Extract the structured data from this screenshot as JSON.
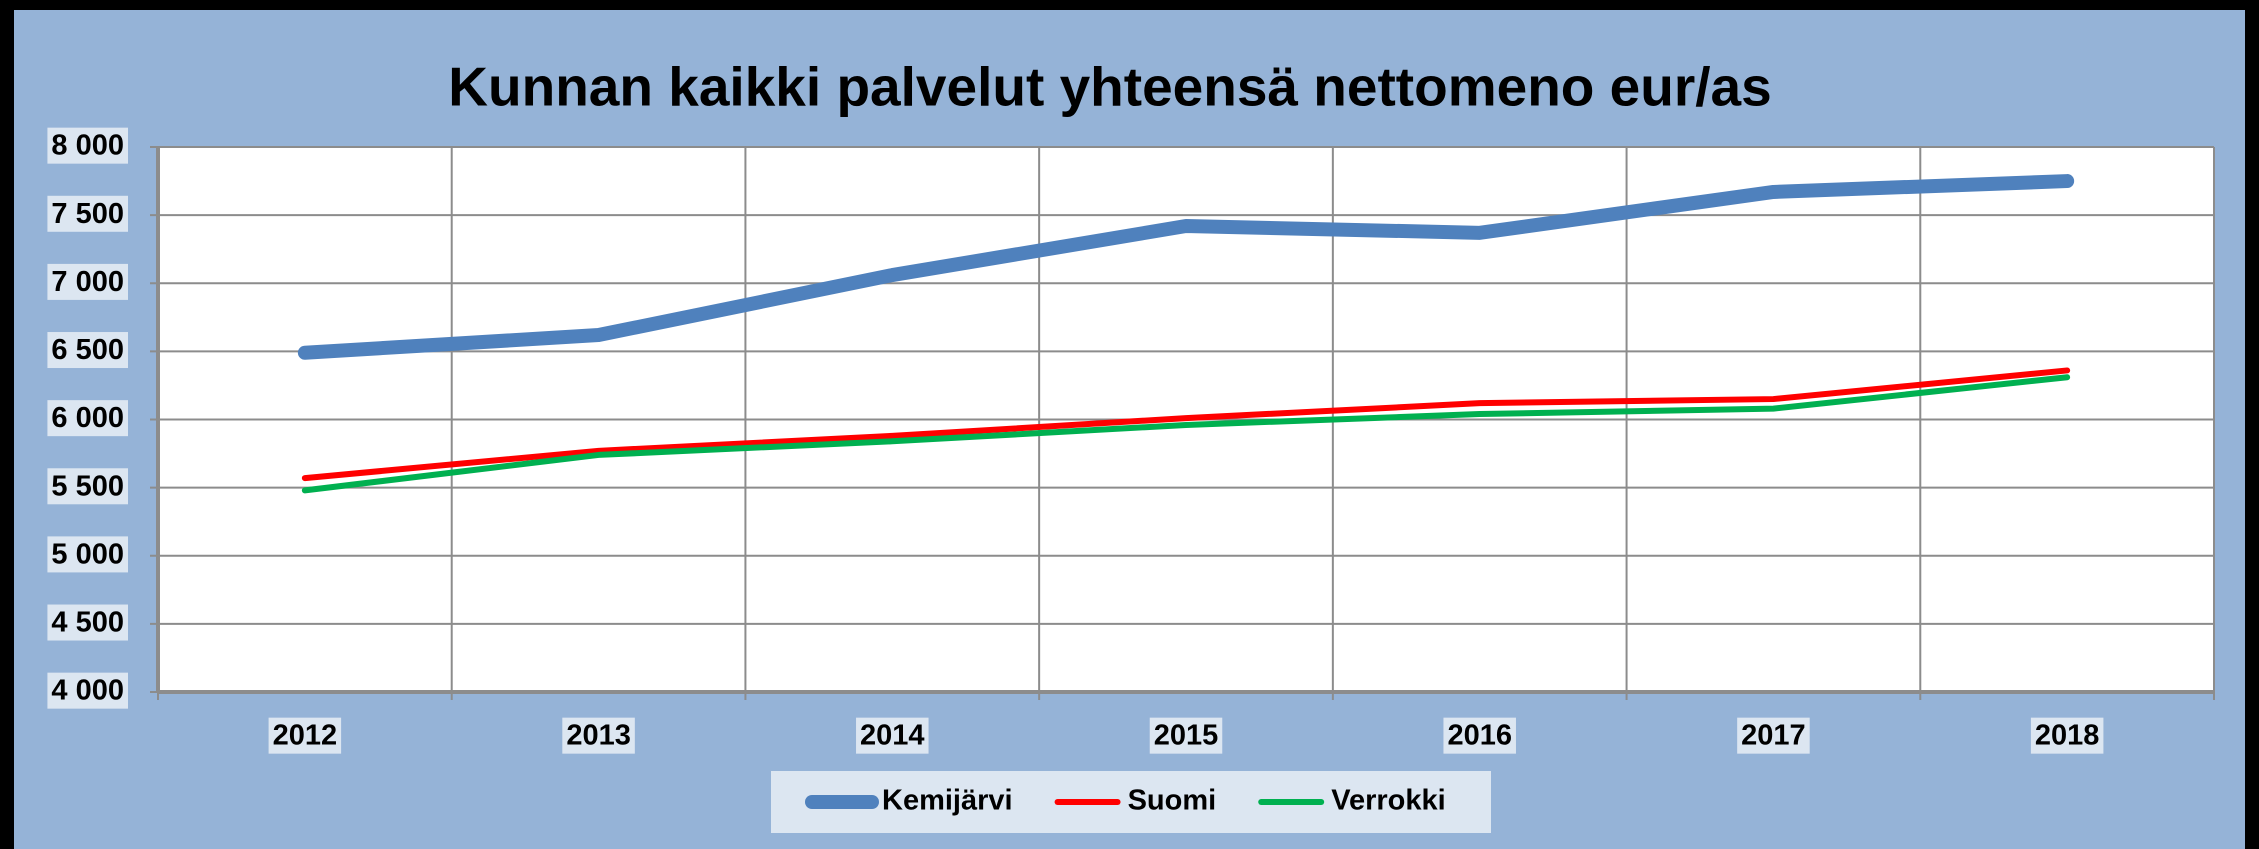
{
  "chart_data": {
    "type": "line",
    "title": "Kunnan kaikki palvelut yhteensä nettomeno eur/as",
    "categories": [
      "2012",
      "2013",
      "2014",
      "2015",
      "2016",
      "2017",
      "2018"
    ],
    "series": [
      {
        "name": "Kemijärvi",
        "color": "#4f81bd",
        "width": 14,
        "values": [
          6490,
          6620,
          7060,
          7420,
          7370,
          7670,
          7750
        ]
      },
      {
        "name": "Suomi",
        "color": "#ff0000",
        "width": 6,
        "values": [
          5570,
          5770,
          5880,
          6010,
          6120,
          6150,
          6360
        ]
      },
      {
        "name": "Verrokki",
        "color": "#00b050",
        "width": 6,
        "values": [
          5480,
          5740,
          5840,
          5960,
          6040,
          6080,
          6310
        ]
      }
    ],
    "ylim": [
      4000,
      8000
    ],
    "yticks": [
      {
        "value": 4000,
        "label": "4 000"
      },
      {
        "value": 4500,
        "label": "4 500"
      },
      {
        "value": 5000,
        "label": "5 000"
      },
      {
        "value": 5500,
        "label": "5 500"
      },
      {
        "value": 6000,
        "label": "6 000"
      },
      {
        "value": 6500,
        "label": "6 500"
      },
      {
        "value": 7000,
        "label": "7 000"
      },
      {
        "value": 7500,
        "label": "7 500"
      },
      {
        "value": 8000,
        "label": "8 000"
      }
    ],
    "grid": true
  }
}
